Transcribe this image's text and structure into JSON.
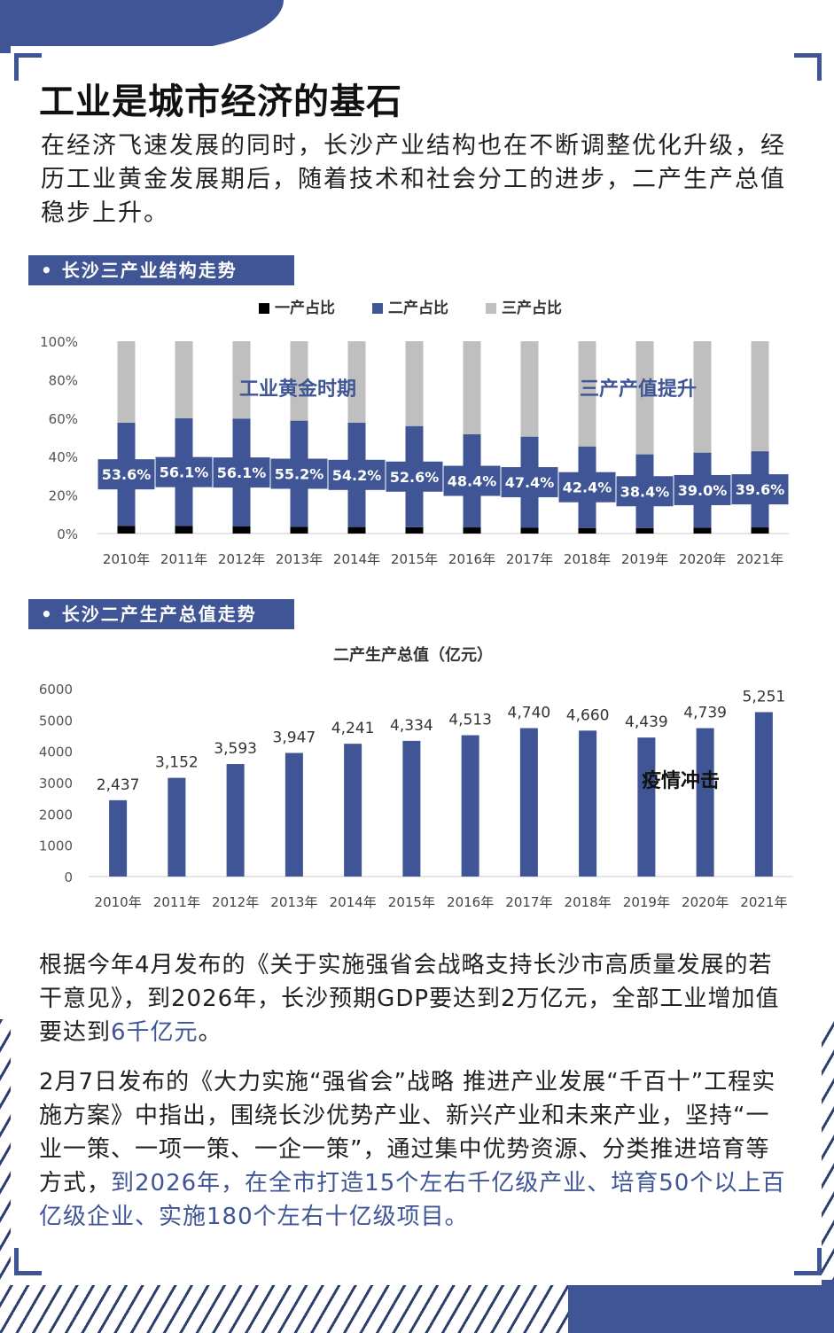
{
  "title": "工业是城市经济的基石",
  "intro": "在经济飞速发展的同时，长沙产业结构也在不断调整优化升级，经历工业黄金发展期后，随着技术和社会分工的进步，二产生产总值稳步上升。",
  "section1": "长沙三产业结构走势",
  "section2": "长沙二产生产总值走势",
  "colors": {
    "accent": "#3f5595",
    "primary": "#000000",
    "tertiary": "#bfbfbf"
  },
  "chart_data": [
    {
      "type": "bar",
      "stacked": true,
      "categories": [
        "2010年",
        "2011年",
        "2012年",
        "2013年",
        "2014年",
        "2015年",
        "2016年",
        "2017年",
        "2018年",
        "2019年",
        "2020年",
        "2021年"
      ],
      "series": [
        {
          "name": "一产占比",
          "values": [
            4.0,
            3.9,
            3.7,
            3.5,
            3.4,
            3.3,
            3.2,
            3.0,
            2.9,
            2.8,
            3.1,
            3.2
          ]
        },
        {
          "name": "二产占比",
          "values": [
            53.6,
            56.1,
            56.1,
            55.2,
            54.2,
            52.6,
            48.4,
            47.4,
            42.4,
            38.4,
            39.0,
            39.6
          ]
        },
        {
          "name": "三产占比",
          "values": [
            42.4,
            40.0,
            40.2,
            41.3,
            42.4,
            44.1,
            48.4,
            49.6,
            54.7,
            58.8,
            57.9,
            57.2
          ]
        }
      ],
      "data_labels": [
        "53.6%",
        "56.1%",
        "56.1%",
        "55.2%",
        "54.2%",
        "52.6%",
        "48.4%",
        "47.4%",
        "42.4%",
        "38.4%",
        "39.0%",
        "39.6%"
      ],
      "y_ticks": [
        "0%",
        "20%",
        "40%",
        "60%",
        "80%",
        "100%"
      ],
      "ylim": [
        0,
        100
      ],
      "annotations": [
        "工业黄金时期",
        "三产产值提升"
      ],
      "legend": "top"
    },
    {
      "type": "bar",
      "title": "二产生产总值（亿元）",
      "categories": [
        "2010年",
        "2011年",
        "2012年",
        "2013年",
        "2014年",
        "2015年",
        "2016年",
        "2017年",
        "2018年",
        "2019年",
        "2020年",
        "2021年"
      ],
      "values": [
        2437,
        3152,
        3593,
        3947,
        4241,
        4334,
        4513,
        4740,
        4660,
        4439,
        4739,
        5251
      ],
      "data_labels": [
        "2,437",
        "3,152",
        "3,593",
        "3,947",
        "4,241",
        "4,334",
        "4,513",
        "4,740",
        "4,660",
        "4,439",
        "4,739",
        "5,251"
      ],
      "y_ticks": [
        "0",
        "1000",
        "2000",
        "3000",
        "4000",
        "5000",
        "6000"
      ],
      "ylim": [
        0,
        6000
      ],
      "annotations": [
        "疫情冲击"
      ]
    }
  ],
  "para1": {
    "text": "根据今年4月发布的《关于实施强省会战略支持长沙市高质量发展的若干意见》，到2026年，长沙预期GDP要达到2万亿元，全部工业增加值要达到",
    "highlight": "6千亿元",
    "tail": "。"
  },
  "para2": {
    "text": "2月7日发布的《大力实施“强省会”战略 推进产业发展“千百十”工程实施方案》中指出，围绕长沙优势产业、新兴产业和未来产业，坚持“一业一策、一项一策、一企一策”，通过集中优势资源、分类推进培育等方式，",
    "highlight": "到2026年，在全市打造15个左右千亿级产业、培育50个以上百亿级企业、实施180个左右十亿级项目。"
  }
}
